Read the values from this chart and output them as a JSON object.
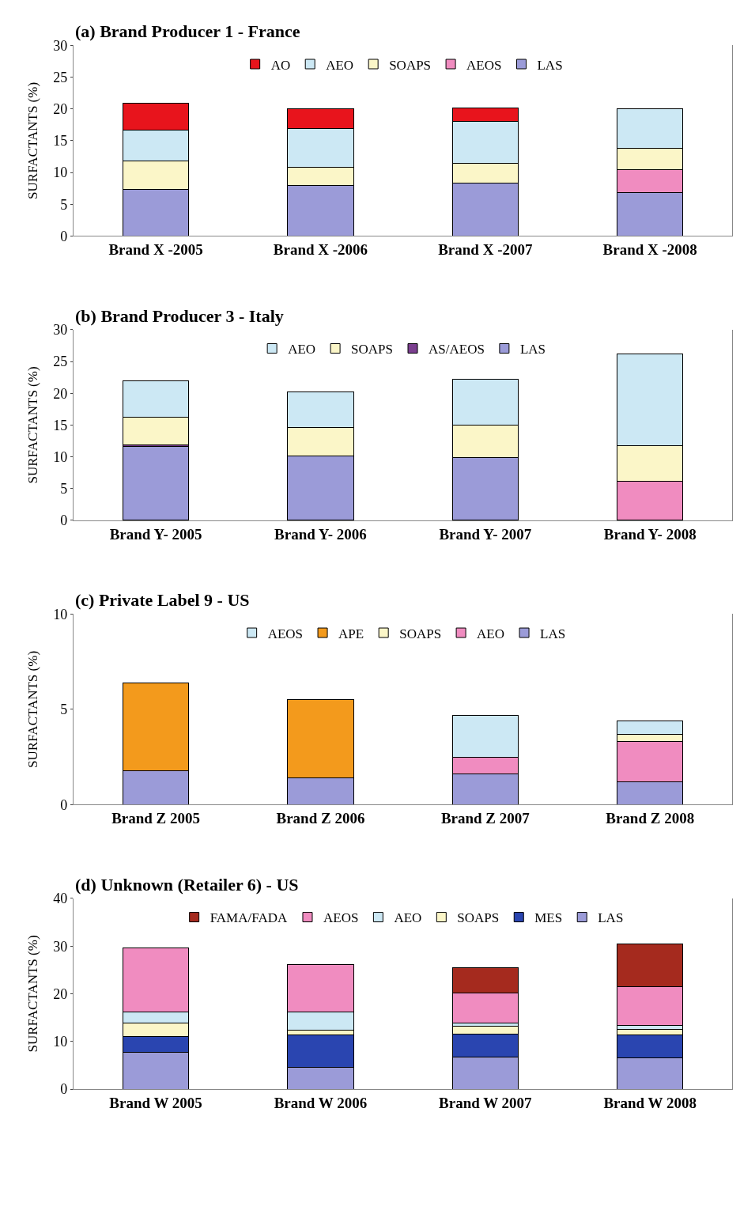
{
  "chart_data": [
    {
      "type": "bar",
      "title": "(a) Brand Producer 1 - France",
      "ylabel": "SURFACTANTS (%)",
      "stacked": true,
      "legend": "top",
      "categories": [
        "Brand X -2005",
        "Brand X -2006",
        "Brand X -2007",
        "Brand X -2008"
      ],
      "ylim": [
        0,
        30
      ],
      "yticks": [
        0,
        5,
        10,
        15,
        20,
        25,
        30
      ],
      "series": [
        {
          "name": "LAS",
          "color": "#9b9bd8",
          "values": [
            7.3,
            8.0,
            8.3,
            6.8
          ]
        },
        {
          "name": "AEOS",
          "color": "#f08cc0",
          "values": [
            null,
            null,
            null,
            3.6
          ]
        },
        {
          "name": "SOAPS",
          "color": "#fbf6c8",
          "values": [
            4.5,
            2.8,
            3.1,
            3.4
          ]
        },
        {
          "name": "AEO",
          "color": "#cce8f4",
          "values": [
            4.9,
            6.1,
            6.6,
            6.2
          ]
        },
        {
          "name": "AO",
          "color": "#e8141c",
          "values": [
            4.2,
            3.1,
            2.1,
            null
          ]
        }
      ]
    },
    {
      "type": "bar",
      "title": "(b) Brand Producer 3 - Italy",
      "ylabel": "SURFACTANTS (%)",
      "stacked": true,
      "legend": "top",
      "categories": [
        "Brand Y- 2005",
        "Brand Y- 2006",
        "Brand Y- 2007",
        "Brand Y- 2008"
      ],
      "ylim": [
        0,
        30
      ],
      "yticks": [
        0,
        5,
        10,
        15,
        20,
        25,
        30
      ],
      "series": [
        {
          "name": "LAS",
          "color": "#9b9bd8",
          "values": [
            11.6,
            10.1,
            9.9,
            null
          ]
        },
        {
          "name": "AS/AEOS",
          "color": "#7b3f8f",
          "colors": [
            "#7b3f8f",
            "#7b3f8f",
            "#7b3f8f",
            "#f08cc0"
          ],
          "values": [
            0.3,
            null,
            null,
            6.2
          ]
        },
        {
          "name": "SOAPS",
          "color": "#fbf6c8",
          "values": [
            4.3,
            4.5,
            5.1,
            5.6
          ]
        },
        {
          "name": "AEO",
          "color": "#cce8f4",
          "values": [
            5.8,
            5.6,
            7.2,
            14.4
          ]
        }
      ]
    },
    {
      "type": "bar",
      "title": "(c) Private Label 9 - US",
      "ylabel": "SURFACTANTS (%)",
      "stacked": true,
      "legend": "top",
      "categories": [
        "Brand Z 2005",
        "Brand Z 2006",
        "Brand Z 2007",
        "Brand Z 2008"
      ],
      "ylim": [
        0,
        10
      ],
      "yticks": [
        0,
        5,
        10
      ],
      "series": [
        {
          "name": "LAS",
          "color": "#9b9bd8",
          "values": [
            1.8,
            1.4,
            1.6,
            1.2
          ]
        },
        {
          "name": "AEO",
          "color": "#f08cc0",
          "values": [
            null,
            null,
            0.9,
            2.1
          ]
        },
        {
          "name": "SOAPS",
          "color": "#fbf6c8",
          "values": [
            null,
            null,
            null,
            0.4
          ]
        },
        {
          "name": "APE",
          "color": "#f39a1c",
          "values": [
            4.6,
            4.1,
            null,
            null
          ]
        },
        {
          "name": "AEOS",
          "color": "#cce8f4",
          "values": [
            null,
            null,
            2.2,
            0.7
          ]
        }
      ]
    },
    {
      "type": "bar",
      "title": "(d) Unknown (Retailer 6) - US",
      "ylabel": "SURFACTANTS (%)",
      "stacked": true,
      "legend": "top",
      "categories": [
        "Brand W 2005",
        "Brand W 2006",
        "Brand W 2007",
        "Brand W 2008"
      ],
      "ylim": [
        0,
        40
      ],
      "yticks": [
        0,
        10,
        20,
        30,
        40
      ],
      "series": [
        {
          "name": "LAS",
          "color": "#9b9bd8",
          "values": [
            7.7,
            4.5,
            6.7,
            6.6
          ]
        },
        {
          "name": "MES",
          "color": "#2a45b0",
          "values": [
            3.4,
            6.8,
            4.8,
            4.7
          ]
        },
        {
          "name": "SOAPS",
          "color": "#fbf6c8",
          "values": [
            2.8,
            1.1,
            1.7,
            1.3
          ]
        },
        {
          "name": "AEO",
          "color": "#cce8f4",
          "values": [
            2.3,
            3.8,
            0.6,
            0.8
          ]
        },
        {
          "name": "AEOS",
          "color": "#f08cc0",
          "values": [
            13.4,
            9.9,
            6.3,
            8.1
          ]
        },
        {
          "name": "FAMA/FADA",
          "color": "#a52a1e",
          "values": [
            null,
            null,
            5.4,
            8.9
          ]
        }
      ]
    }
  ]
}
